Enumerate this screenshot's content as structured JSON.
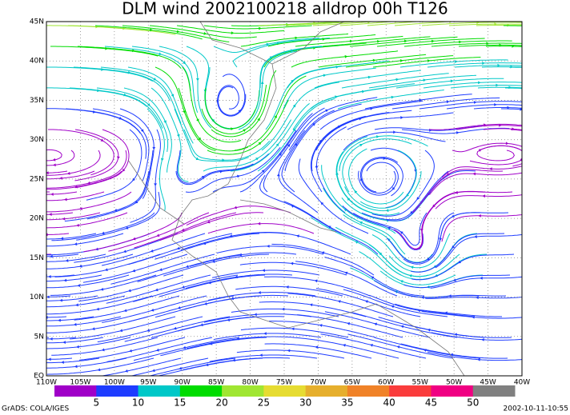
{
  "title": "DLM wind 2002100218 alldrop 00h T126",
  "x_labels": [
    "110W",
    "105W",
    "100W",
    "95W",
    "90W",
    "85W",
    "80W",
    "75W",
    "70W",
    "65W",
    "60W",
    "55W",
    "50W",
    "45W",
    "40W"
  ],
  "y_labels": [
    "EQ",
    "5N",
    "10N",
    "15N",
    "20N",
    "25N",
    "30N",
    "35N",
    "40N",
    "45N"
  ],
  "colorbar": {
    "colors": [
      "#a000c8",
      "#1e3cff",
      "#00c8c8",
      "#00dc00",
      "#a0e632",
      "#e6dc32",
      "#e6af2d",
      "#f08228",
      "#fa3c3c",
      "#f00082",
      "#808080"
    ],
    "labels": [
      "5",
      "10",
      "15",
      "20",
      "25",
      "30",
      "35",
      "40",
      "45",
      "50"
    ]
  },
  "footer_left": "GrADS: COLA/IGES",
  "footer_right": "2002-10-11-10:55"
}
